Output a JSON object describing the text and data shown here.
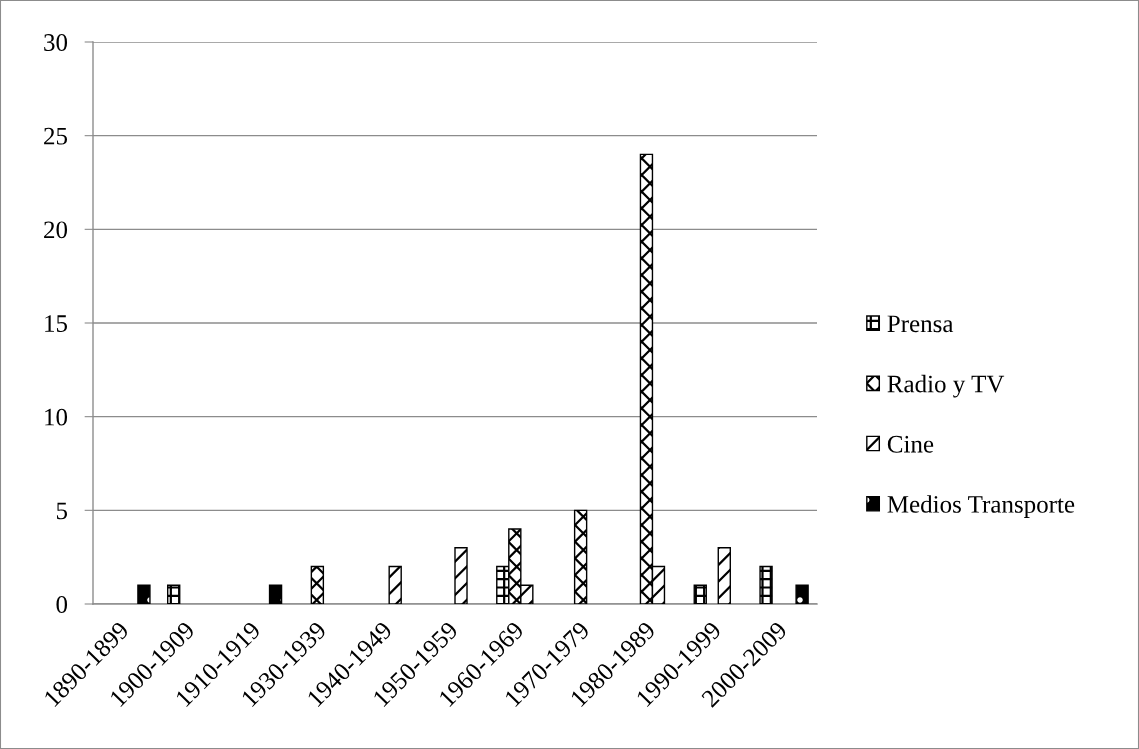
{
  "chart_data": {
    "type": "bar",
    "categories": [
      "1890-1899",
      "1900-1909",
      "1910-1919",
      "1930-1939",
      "1940-1949",
      "1950-1959",
      "1960-1969",
      "1970-1979",
      "1980-1989",
      "1990-1999",
      "2000-2009"
    ],
    "series": [
      {
        "name": "Prensa",
        "color": "#000000",
        "values": [
          null,
          1,
          null,
          null,
          null,
          null,
          2,
          null,
          null,
          1,
          2
        ]
      },
      {
        "name": "Radio y TV",
        "color": "#000000",
        "values": [
          null,
          null,
          null,
          2,
          null,
          null,
          4,
          5,
          24,
          null,
          null
        ]
      },
      {
        "name": "Cine",
        "color": "#000000",
        "values": [
          null,
          null,
          null,
          null,
          2,
          3,
          1,
          null,
          2,
          3,
          null
        ]
      },
      {
        "name": "Medios Transporte",
        "color": "#000000",
        "values": [
          1,
          null,
          1,
          null,
          null,
          null,
          null,
          null,
          null,
          null,
          1
        ]
      }
    ],
    "ylim": [
      0,
      30
    ],
    "yticks": [
      0,
      5,
      10,
      15,
      20,
      25,
      30
    ],
    "grid": "y",
    "legend": "right"
  }
}
